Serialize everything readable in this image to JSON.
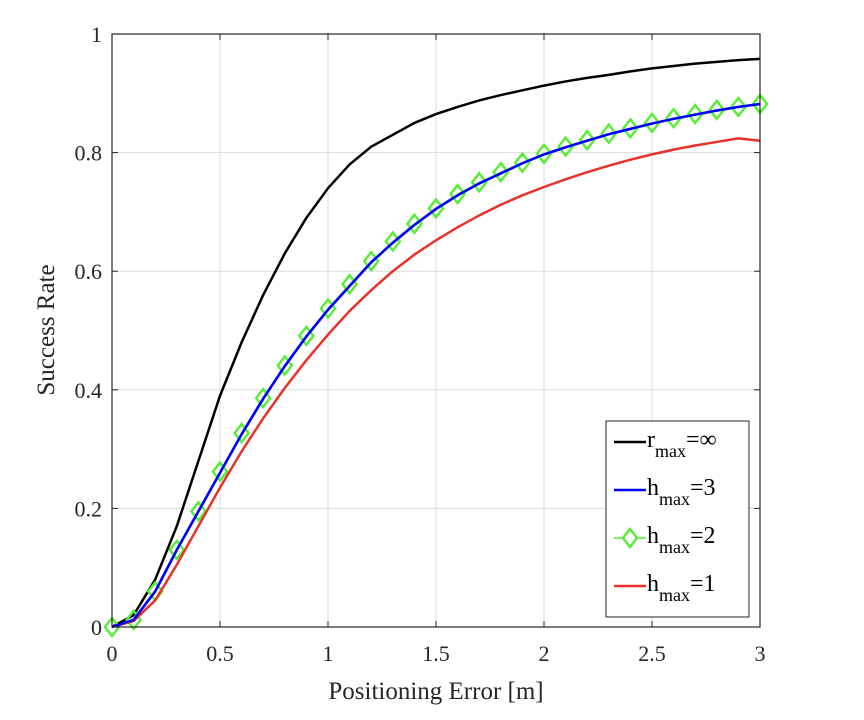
{
  "chart_data": {
    "type": "line",
    "xlabel": "Positioning Error [m]",
    "ylabel": "Success Rate",
    "xlim": [
      0,
      3
    ],
    "ylim": [
      0,
      1
    ],
    "grid": true,
    "legend_position": "bottom-right",
    "x_ticks": [
      "0",
      "0.5",
      "1",
      "1.5",
      "2",
      "2.5",
      "3"
    ],
    "y_ticks": [
      "0",
      "0.2",
      "0.4",
      "0.6",
      "0.8",
      "1"
    ],
    "x_tick_values": [
      0,
      0.5,
      1,
      1.5,
      2,
      2.5,
      3
    ],
    "y_tick_values": [
      0,
      0.2,
      0.4,
      0.6,
      0.8,
      1
    ],
    "series": [
      {
        "name": "r_max=∞",
        "legend_main": "r",
        "legend_sub": "max",
        "legend_suffix": "=∞",
        "color": "#000000",
        "marker": "none",
        "x": [
          0,
          0.1,
          0.2,
          0.3,
          0.4,
          0.5,
          0.6,
          0.7,
          0.8,
          0.9,
          1.0,
          1.1,
          1.2,
          1.3,
          1.4,
          1.5,
          1.6,
          1.7,
          1.8,
          1.9,
          2.0,
          2.1,
          2.2,
          2.3,
          2.4,
          2.5,
          2.6,
          2.7,
          2.8,
          2.9,
          3.0
        ],
        "y": [
          0,
          0.02,
          0.08,
          0.17,
          0.28,
          0.39,
          0.48,
          0.56,
          0.63,
          0.69,
          0.74,
          0.78,
          0.81,
          0.83,
          0.85,
          0.865,
          0.877,
          0.888,
          0.897,
          0.905,
          0.913,
          0.92,
          0.926,
          0.931,
          0.937,
          0.942,
          0.946,
          0.95,
          0.953,
          0.956,
          0.958
        ]
      },
      {
        "name": "h_max=3",
        "legend_main": "h",
        "legend_sub": "max",
        "legend_suffix": "=3",
        "color": "#0000ff",
        "marker": "none",
        "x": [
          0,
          0.1,
          0.2,
          0.3,
          0.4,
          0.5,
          0.6,
          0.7,
          0.8,
          0.9,
          1.0,
          1.1,
          1.2,
          1.3,
          1.4,
          1.5,
          1.6,
          1.7,
          1.8,
          1.9,
          2.0,
          2.1,
          2.2,
          2.3,
          2.4,
          2.5,
          2.6,
          2.7,
          2.8,
          2.9,
          3.0
        ],
        "y": [
          0,
          0.012,
          0.06,
          0.13,
          0.195,
          0.26,
          0.325,
          0.385,
          0.44,
          0.49,
          0.535,
          0.575,
          0.615,
          0.648,
          0.678,
          0.705,
          0.728,
          0.748,
          0.765,
          0.782,
          0.797,
          0.809,
          0.82,
          0.831,
          0.84,
          0.849,
          0.857,
          0.864,
          0.871,
          0.877,
          0.882
        ]
      },
      {
        "name": "h_max=2",
        "legend_main": "h",
        "legend_sub": "max",
        "legend_suffix": "=2",
        "color": "#55ee33",
        "marker": "diamond",
        "x": [
          0,
          0.1,
          0.2,
          0.3,
          0.4,
          0.5,
          0.6,
          0.7,
          0.8,
          0.9,
          1.0,
          1.1,
          1.2,
          1.3,
          1.4,
          1.5,
          1.6,
          1.7,
          1.8,
          1.9,
          2.0,
          2.1,
          2.2,
          2.3,
          2.4,
          2.5,
          2.6,
          2.7,
          2.8,
          2.9,
          3.0
        ],
        "y": [
          0,
          0.012,
          0.06,
          0.13,
          0.195,
          0.262,
          0.327,
          0.386,
          0.441,
          0.491,
          0.537,
          0.578,
          0.617,
          0.65,
          0.68,
          0.706,
          0.73,
          0.75,
          0.767,
          0.783,
          0.798,
          0.81,
          0.821,
          0.832,
          0.841,
          0.85,
          0.858,
          0.865,
          0.872,
          0.877,
          0.882
        ]
      },
      {
        "name": "h_max=1",
        "legend_main": "h",
        "legend_sub": "max",
        "legend_suffix": "=1",
        "color": "#e8322a",
        "marker": "none",
        "x": [
          0,
          0.1,
          0.2,
          0.3,
          0.4,
          0.5,
          0.6,
          0.7,
          0.8,
          0.9,
          1.0,
          1.1,
          1.2,
          1.3,
          1.4,
          1.5,
          1.6,
          1.7,
          1.8,
          1.9,
          2.0,
          2.1,
          2.2,
          2.3,
          2.4,
          2.5,
          2.6,
          2.7,
          2.8,
          2.9,
          3.0
        ],
        "y": [
          0,
          0.01,
          0.045,
          0.105,
          0.17,
          0.235,
          0.296,
          0.352,
          0.403,
          0.45,
          0.493,
          0.533,
          0.568,
          0.6,
          0.628,
          0.652,
          0.674,
          0.694,
          0.712,
          0.728,
          0.742,
          0.755,
          0.767,
          0.778,
          0.788,
          0.797,
          0.805,
          0.812,
          0.818,
          0.824,
          0.82
        ]
      }
    ]
  }
}
